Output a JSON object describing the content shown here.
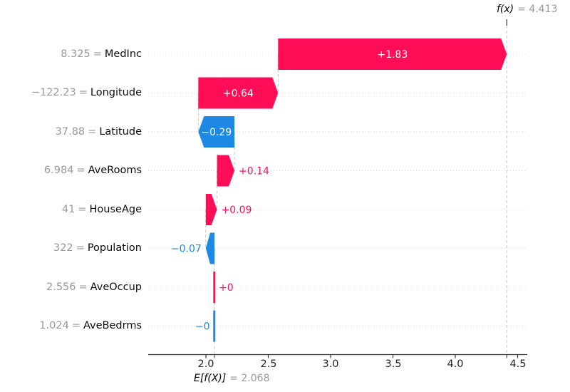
{
  "chart_data": {
    "type": "waterfall",
    "title": "",
    "eq": "=",
    "fx": {
      "name": "f(x)",
      "value": 4.413,
      "value_text": "= 4.413"
    },
    "ef": {
      "name": "E[f(X)]",
      "value": 2.068,
      "value_text": "= 2.068"
    },
    "axis": {
      "tick_values": [
        2.0,
        2.5,
        3.0,
        3.5,
        4.0,
        4.5
      ],
      "tick_labels": [
        "2.0",
        "2.5",
        "3.0",
        "3.5",
        "4.0",
        "4.5"
      ],
      "xlabel": "",
      "grid": "dotted-row-lines"
    },
    "features": [
      {
        "name": "MedInc",
        "value": "8.325",
        "shap": 1.834,
        "label": "+1.83"
      },
      {
        "name": "Longitude",
        "value": "−122.23",
        "shap": 0.64,
        "label": "+0.64"
      },
      {
        "name": "Latitude",
        "value": "37.88",
        "shap": -0.29,
        "label": "−0.29"
      },
      {
        "name": "AveRooms",
        "value": "6.984",
        "shap": 0.14,
        "label": "+0.14"
      },
      {
        "name": "HouseAge",
        "value": "41",
        "shap": 0.09,
        "label": "+0.09"
      },
      {
        "name": "Population",
        "value": "322",
        "shap": -0.07,
        "label": "−0.07"
      },
      {
        "name": "AveOccup",
        "value": "2.556",
        "shap": 0.003,
        "label": "+0"
      },
      {
        "name": "AveBedrms",
        "value": "1.024",
        "shap": -0.002,
        "label": "−0"
      }
    ],
    "colors": {
      "positive": "#ff0d57",
      "negative": "#1e88e5",
      "bar_text_inside": "#ffffff",
      "muted_text": "#999999",
      "text": "#0d0d0d",
      "grid": "#dcdcdc",
      "dashed": "#c4c4c4",
      "axis": "#333333"
    }
  }
}
